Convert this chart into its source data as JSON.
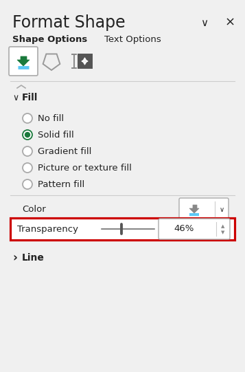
{
  "bg_color": "#f0f0f0",
  "title": "Format Shape",
  "title_fontsize": 17,
  "tab1": "Shape Options",
  "tab2": "Text Options",
  "tab_fontsize": 9.5,
  "fill_label": "Fill",
  "fill_fontsize": 10,
  "radio_options": [
    "No fill",
    "Solid fill",
    "Gradient fill",
    "Picture or texture fill",
    "Pattern fill"
  ],
  "radio_selected": 1,
  "radio_fontsize": 9.5,
  "color_label": "Color",
  "color_fontsize": 9.5,
  "transparency_label": "Transparency",
  "transparency_value": "46%",
  "transparency_fontsize": 9.5,
  "line_label": "Line",
  "line_fontsize": 10,
  "red_border": "#cc0000",
  "green_color": "#1a7a3c",
  "text_color": "#222222",
  "separator_color": "#cccccc",
  "radio_ring_color": "#aaaaaa",
  "icon_box_color": "#aaaaaa",
  "slider_color": "#888888",
  "spinbox_border": "#aaaaaa",
  "color_btn_border": "#aaaaaa"
}
